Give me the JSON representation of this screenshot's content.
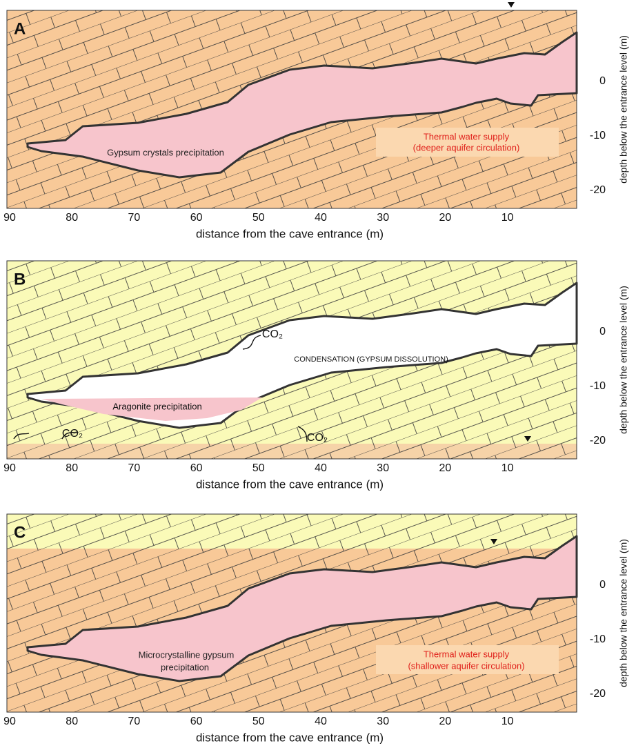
{
  "panels": [
    {
      "label": "A",
      "x_axis": {
        "title": "distance from the cave entrance (m)",
        "ticks": [
          90,
          80,
          70,
          60,
          50,
          40,
          30,
          20,
          10
        ]
      },
      "y_axis": {
        "title": "depth below the entrance level (m)",
        "ticks": [
          0,
          -10,
          -20
        ]
      },
      "annotations": [
        "Gypsum crystals precipitation",
        "Thermal water supply",
        "(deeper aquifer circulation)"
      ]
    },
    {
      "label": "B",
      "x_axis": {
        "title": "distance from the cave entrance (m)",
        "ticks": [
          90,
          80,
          70,
          60,
          50,
          40,
          30,
          20,
          10
        ]
      },
      "y_axis": {
        "title": "depth below the entrance level (m)",
        "ticks": [
          0,
          -10,
          -20
        ]
      },
      "annotations": [
        "CONDENSATION (GYPSUM DISSOLUTION)",
        "CO₂",
        "Aragonite precipitation",
        "CO₂",
        "CO₂"
      ]
    },
    {
      "label": "C",
      "x_axis": {
        "title": "distance from the cave entrance (m)",
        "ticks": [
          90,
          80,
          70,
          60,
          50,
          40,
          30,
          20,
          10
        ]
      },
      "y_axis": {
        "title": "depth below the entrance level (m)",
        "ticks": [
          0,
          -10,
          -20
        ]
      },
      "annotations": [
        "Microcrystalline gypsum",
        "precipitation",
        "Thermal water supply",
        "(shallower aquifer circulation)"
      ]
    }
  ]
}
